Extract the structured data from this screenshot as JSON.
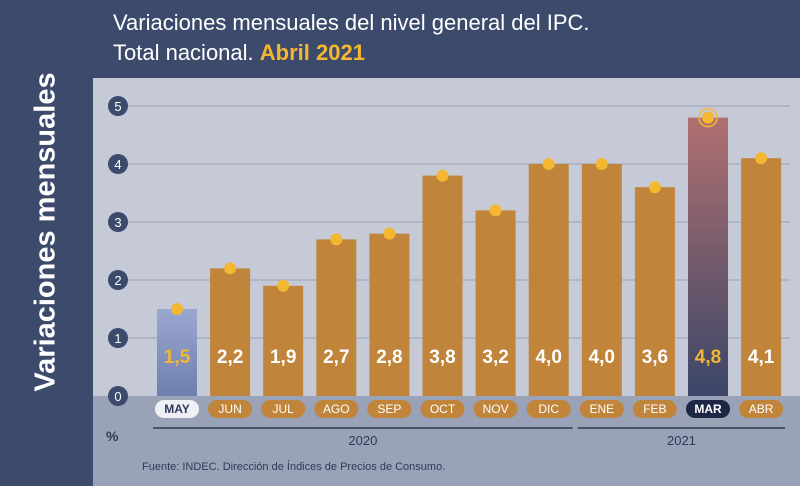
{
  "sidebar_label": "Variaciones mensuales",
  "title_line1": "Variaciones mensuales del nivel general del IPC.",
  "title_line2_prefix": "Total nacional.",
  "title_line2_highlight": "Abril 2021",
  "percent_label": "%",
  "source": "Fuente: INDEC. Dirección de Índices de Precios de Consumo.",
  "colors": {
    "navy": "#3c4a6b",
    "bar": "#c0843a",
    "accent": "#f4b731",
    "bar_first": "#8e9cc4",
    "bar_highlight": "#8b5a5a",
    "plot_bg": "#c6cad7"
  },
  "chart_data": {
    "type": "bar",
    "title": "Variaciones mensuales del nivel general del IPC. Total nacional. Abril 2021",
    "ylabel": "%",
    "ylim": [
      0,
      5
    ],
    "yticks": [
      "0",
      "1",
      "2",
      "3",
      "4",
      "5"
    ],
    "categories": [
      "MAY",
      "JUN",
      "JUL",
      "AGO",
      "SEP",
      "OCT",
      "NOV",
      "DIC",
      "ENE",
      "FEB",
      "MAR",
      "ABR"
    ],
    "values": [
      1.5,
      2.2,
      1.9,
      2.7,
      2.8,
      3.8,
      3.2,
      4.0,
      4.0,
      3.6,
      4.8,
      4.1
    ],
    "value_labels": [
      "1,5",
      "2,2",
      "1,9",
      "2,7",
      "2,8",
      "3,8",
      "3,2",
      "4,0",
      "4,0",
      "3,6",
      "4,8",
      "4,1"
    ],
    "bar_styles": [
      "first",
      "normal",
      "normal",
      "normal",
      "normal",
      "normal",
      "normal",
      "normal",
      "normal",
      "normal",
      "highlight",
      "normal"
    ],
    "year_groups": [
      {
        "label": "2020",
        "from": 0,
        "to": 7
      },
      {
        "label": "2021",
        "from": 8,
        "to": 11
      }
    ]
  }
}
